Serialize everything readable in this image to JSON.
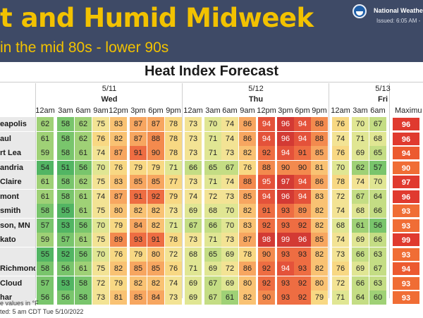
{
  "banner": {
    "title": "t and Humid Midweek",
    "subtitle": "in the mid 80s - lower 90s",
    "agency": "National Weathe",
    "issued": "Issued: 6:05 AM -"
  },
  "heading": "Heat Index Forecast",
  "days": [
    {
      "date": "5/11",
      "day": "Wed"
    },
    {
      "date": "5/12",
      "day": "Thu"
    },
    {
      "date": "5/13",
      "day": "Fri"
    }
  ],
  "hours": [
    "12am",
    "3am",
    "6am",
    "9am",
    "12pm",
    "3pm",
    "6pm",
    "9pm",
    "12am",
    "3am",
    "6am",
    "9am",
    "12pm",
    "3pm",
    "6pm",
    "9pm",
    "12am",
    "3am",
    "6am"
  ],
  "max_header": "Maximu",
  "rows": [
    {
      "city": "eapolis",
      "values": [
        62,
        58,
        62,
        75,
        83,
        87,
        87,
        78,
        73,
        70,
        74,
        86,
        94,
        96,
        94,
        88,
        76,
        70,
        67
      ],
      "max": 96
    },
    {
      "city": "aul",
      "values": [
        61,
        58,
        62,
        76,
        82,
        87,
        88,
        78,
        73,
        71,
        74,
        86,
        94,
        96,
        94,
        88,
        74,
        71,
        68
      ],
      "max": 96
    },
    {
      "city": "rt Lea",
      "values": [
        59,
        58,
        61,
        74,
        87,
        91,
        90,
        78,
        73,
        71,
        73,
        82,
        92,
        94,
        91,
        85,
        76,
        69,
        65
      ],
      "max": 94
    },
    {
      "city": "andria",
      "values": [
        54,
        51,
        56,
        70,
        76,
        79,
        79,
        71,
        66,
        65,
        67,
        76,
        88,
        90,
        90,
        81,
        70,
        62,
        57
      ],
      "max": 90
    },
    {
      "city": "Claire",
      "values": [
        61,
        58,
        62,
        75,
        83,
        85,
        85,
        77,
        73,
        71,
        74,
        88,
        95,
        97,
        94,
        86,
        78,
        74,
        70
      ],
      "max": 97
    },
    {
      "city": "mont",
      "values": [
        61,
        58,
        61,
        74,
        87,
        91,
        92,
        79,
        74,
        72,
        73,
        85,
        94,
        96,
        94,
        83,
        72,
        67,
        64
      ],
      "max": 96
    },
    {
      "city": "smith",
      "values": [
        58,
        55,
        61,
        75,
        80,
        82,
        82,
        73,
        69,
        68,
        70,
        82,
        91,
        93,
        89,
        82,
        74,
        68,
        66
      ],
      "max": 93
    },
    {
      "city": "son, MN",
      "values": [
        57,
        53,
        56,
        70,
        79,
        84,
        82,
        71,
        67,
        66,
        70,
        83,
        92,
        93,
        92,
        82,
        68,
        61,
        56
      ],
      "max": 93
    },
    {
      "city": "kato",
      "values": [
        59,
        57,
        61,
        75,
        89,
        93,
        91,
        78,
        73,
        71,
        73,
        87,
        98,
        99,
        96,
        85,
        74,
        69,
        66
      ],
      "max": 99
    },
    {
      "city": "",
      "values": [
        55,
        52,
        56,
        70,
        76,
        79,
        80,
        72,
        68,
        65,
        69,
        78,
        90,
        93,
        93,
        82,
        73,
        66,
        63
      ],
      "max": 93
    },
    {
      "city": "Richmond",
      "values": [
        58,
        56,
        61,
        75,
        82,
        85,
        85,
        76,
        71,
        69,
        72,
        86,
        92,
        94,
        93,
        82,
        76,
        69,
        67
      ],
      "max": 94
    },
    {
      "city": "Cloud",
      "values": [
        57,
        53,
        58,
        72,
        79,
        82,
        82,
        74,
        69,
        67,
        69,
        80,
        92,
        93,
        92,
        80,
        72,
        66,
        63
      ],
      "max": 93
    },
    {
      "city": "har",
      "values": [
        56,
        56,
        58,
        73,
        81,
        85,
        84,
        73,
        69,
        67,
        61,
        82,
        90,
        93,
        92,
        79,
        71,
        64,
        60
      ],
      "max": 93
    }
  ],
  "footer": {
    "line1": "e values in °F",
    "line2": "ted: 5 am CDT Tue 5/10/2022"
  }
}
